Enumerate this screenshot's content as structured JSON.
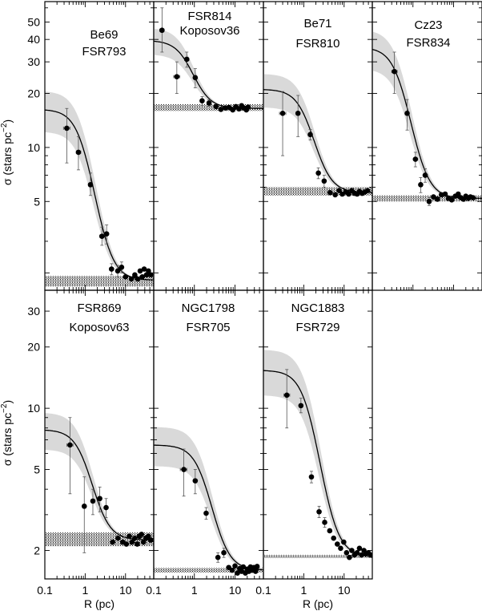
{
  "chart_data": {
    "type": "scatter",
    "x_scale": "log",
    "y_scale": "log",
    "xlim": [
      0.1,
      50
    ],
    "ylim_top_row": [
      1.6,
      65
    ],
    "ylim_bottom_row": [
      1.45,
      38
    ],
    "xlabel": "R (pc)",
    "ylabel_main": "σ (stars pc",
    "ylabel_exp": "−2",
    "ylabel_close": ")",
    "x_ticks": [
      "0.1",
      "1",
      "10"
    ],
    "y_ticks_top": [
      "5",
      "10",
      "20",
      "30",
      "40",
      "50"
    ],
    "y_ticks_bottom": [
      "2",
      "5",
      "10",
      "20",
      "30"
    ],
    "fit_color": "#000000",
    "band_color": "#d9d9d9",
    "panels": [
      {
        "row": 0,
        "col": 0,
        "labels": [
          "Be69",
          "FSR793"
        ],
        "model": {
          "bg": 1.82,
          "s0": 14.5,
          "rc": 1.0
        },
        "bg_band": [
          1.68,
          1.92
        ],
        "points": [
          {
            "x": 0.35,
            "y": 12.8,
            "xl": 0.29,
            "xh": 0.42,
            "yl": 8.2,
            "yh": 16.5
          },
          {
            "x": 0.68,
            "y": 9.4,
            "xl": 0.6,
            "xh": 0.78,
            "yl": 7.5,
            "yh": 11.5
          },
          {
            "x": 1.35,
            "y": 6.2,
            "xl": 1.2,
            "xh": 1.5,
            "yl": 5.4,
            "yh": 7.2
          },
          {
            "x": 2.6,
            "y": 3.2,
            "xl": 2.3,
            "xh": 2.9,
            "yl": 2.85,
            "yh": 3.6
          },
          {
            "x": 3.4,
            "y": 3.3,
            "xl": 3.0,
            "xh": 3.8,
            "yl": 2.9,
            "yh": 3.7
          },
          {
            "x": 4.5,
            "y": 2.1,
            "xl": 4.0,
            "xh": 5.0,
            "yl": 1.95,
            "yh": 2.25
          },
          {
            "x": 6.4,
            "y": 2.05,
            "xl": 5.8,
            "xh": 7.0,
            "yl": 1.9,
            "yh": 2.2
          },
          {
            "x": 8.0,
            "y": 2.15,
            "xl": 7.4,
            "xh": 8.7,
            "yl": 2.0,
            "yh": 2.3
          },
          {
            "x": 10,
            "y": 1.9
          },
          {
            "x": 14,
            "y": 1.85
          },
          {
            "x": 17,
            "y": 1.95
          },
          {
            "x": 20,
            "y": 1.85
          },
          {
            "x": 23,
            "y": 2.05
          },
          {
            "x": 26,
            "y": 1.9
          },
          {
            "x": 29,
            "y": 2.1
          },
          {
            "x": 33,
            "y": 1.95
          },
          {
            "x": 37,
            "y": 2.05
          },
          {
            "x": 42,
            "y": 1.95
          }
        ]
      },
      {
        "row": 0,
        "col": 1,
        "labels": [
          "FSR814",
          "Koposov36"
        ],
        "model": {
          "bg": 16.5,
          "s0": 23,
          "rc": 0.75
        },
        "bg_band": [
          16.0,
          17.4
        ],
        "points": [
          {
            "x": 0.16,
            "y": 45,
            "xl": 0.14,
            "xh": 0.18,
            "yl": 34,
            "yh": 60
          },
          {
            "x": 0.37,
            "y": 24.8,
            "xl": 0.31,
            "xh": 0.44,
            "yl": 20,
            "yh": 30
          },
          {
            "x": 0.65,
            "y": 31,
            "xl": 0.58,
            "xh": 0.73,
            "yl": 28,
            "yh": 34
          },
          {
            "x": 1.05,
            "y": 24.5,
            "xl": 0.95,
            "xh": 1.15,
            "yl": 21.5,
            "yh": 27.5
          },
          {
            "x": 1.55,
            "y": 18.2,
            "xl": 1.4,
            "xh": 1.7,
            "yl": 17.2,
            "yh": 19.2
          },
          {
            "x": 2.3,
            "y": 17.7,
            "xl": 2.1,
            "xh": 2.5,
            "yl": 17.0,
            "yh": 18.4
          },
          {
            "x": 3.4,
            "y": 16.9
          },
          {
            "x": 4.5,
            "y": 16.3
          },
          {
            "x": 5.8,
            "y": 16.6
          },
          {
            "x": 7.2,
            "y": 16.7
          },
          {
            "x": 8.8,
            "y": 16.2
          },
          {
            "x": 10.5,
            "y": 16.9
          },
          {
            "x": 12.5,
            "y": 16.4
          },
          {
            "x": 14.5,
            "y": 17.1
          },
          {
            "x": 16.5,
            "y": 16.6
          },
          {
            "x": 19,
            "y": 16.2
          },
          {
            "x": 21,
            "y": 16.8
          }
        ]
      },
      {
        "row": 0,
        "col": 2,
        "labels": [
          "Be71",
          "FSR810"
        ],
        "model": {
          "bg": 5.6,
          "s0": 15.5,
          "rc": 1.3
        },
        "bg_band": [
          5.4,
          6.0
        ],
        "points": [
          {
            "x": 0.3,
            "y": 15.5,
            "xl": 0.25,
            "xh": 0.36,
            "yl": 9.0,
            "yh": 20.5
          },
          {
            "x": 0.72,
            "y": 15.5,
            "xl": 0.64,
            "xh": 0.8,
            "yl": 11.5,
            "yh": 19.5
          },
          {
            "x": 1.45,
            "y": 11.8,
            "xl": 1.3,
            "xh": 1.6,
            "yl": 11.0,
            "yh": 12.6
          },
          {
            "x": 2.3,
            "y": 7.2,
            "xl": 2.1,
            "xh": 2.5,
            "yl": 6.7,
            "yh": 7.7
          },
          {
            "x": 3.2,
            "y": 6.5,
            "xl": 2.9,
            "xh": 3.5,
            "yl": 6.0,
            "yh": 7.0
          },
          {
            "x": 4.5,
            "y": 5.6
          },
          {
            "x": 6.0,
            "y": 5.45
          },
          {
            "x": 7.5,
            "y": 5.75
          },
          {
            "x": 9,
            "y": 5.5
          },
          {
            "x": 11,
            "y": 5.65
          },
          {
            "x": 13,
            "y": 5.5
          },
          {
            "x": 15.5,
            "y": 5.75
          },
          {
            "x": 18,
            "y": 5.55
          },
          {
            "x": 21,
            "y": 5.5
          },
          {
            "x": 24,
            "y": 5.7
          },
          {
            "x": 28,
            "y": 5.55
          },
          {
            "x": 33,
            "y": 5.65
          },
          {
            "x": 38,
            "y": 5.75
          }
        ]
      },
      {
        "row": 0,
        "col": 3,
        "labels": [
          "Cz23",
          "FSR834"
        ],
        "model": {
          "bg": 5.2,
          "s0": 31,
          "rc": 0.55
        },
        "bg_band": [
          5.0,
          5.4
        ],
        "points": [
          {
            "x": 0.35,
            "y": 26.5,
            "xl": 0.3,
            "xh": 0.41,
            "yl": 20,
            "yh": 34
          },
          {
            "x": 0.72,
            "y": 15.5,
            "xl": 0.65,
            "xh": 0.8,
            "yl": 12.5,
            "yh": 18.5
          },
          {
            "x": 1.15,
            "y": 8.6,
            "xl": 1.05,
            "xh": 1.25,
            "yl": 7.8,
            "yh": 9.4
          },
          {
            "x": 1.55,
            "y": 6.2,
            "xl": 1.42,
            "xh": 1.7,
            "yl": 5.6,
            "yh": 6.8
          },
          {
            "x": 2.0,
            "y": 7.0,
            "xl": 1.85,
            "xh": 2.15,
            "yl": 6.4,
            "yh": 7.6
          },
          {
            "x": 2.5,
            "y": 5.0,
            "xl": 2.3,
            "xh": 2.7,
            "yl": 4.75,
            "yh": 5.25
          },
          {
            "x": 3.2,
            "y": 5.3
          },
          {
            "x": 4.0,
            "y": 5.15
          },
          {
            "x": 5.0,
            "y": 5.45
          },
          {
            "x": 6.2,
            "y": 5.5
          },
          {
            "x": 7.5,
            "y": 5.2
          },
          {
            "x": 9,
            "y": 5.1
          },
          {
            "x": 11,
            "y": 5.35
          },
          {
            "x": 13,
            "y": 5.5
          },
          {
            "x": 15,
            "y": 5.25
          },
          {
            "x": 17.5,
            "y": 5.15
          },
          {
            "x": 20,
            "y": 5.35
          },
          {
            "x": 23,
            "y": 5.2
          },
          {
            "x": 26,
            "y": 5.3
          },
          {
            "x": 30,
            "y": 5.25
          }
        ]
      },
      {
        "row": 1,
        "col": 0,
        "labels": [
          "FSR869",
          "Koposov63"
        ],
        "model": {
          "bg": 2.25,
          "s0": 5.6,
          "rc": 1.1
        },
        "bg_band": [
          2.1,
          2.45
        ],
        "points": [
          {
            "x": 0.42,
            "y": 6.6,
            "xl": 0.35,
            "xh": 0.5,
            "yl": 3.8,
            "yh": 9.0
          },
          {
            "x": 0.95,
            "y": 3.3,
            "xl": 0.85,
            "xh": 1.05,
            "yl": 1.95,
            "yh": 4.6
          },
          {
            "x": 1.55,
            "y": 3.5,
            "xl": 1.4,
            "xh": 1.7,
            "yl": 3.0,
            "yh": 4.0
          },
          {
            "x": 2.3,
            "y": 3.6,
            "xl": 2.1,
            "xh": 2.5,
            "yl": 3.1,
            "yh": 4.1
          },
          {
            "x": 3.3,
            "y": 3.25,
            "xl": 3.0,
            "xh": 3.6,
            "yl": 2.9,
            "yh": 3.6
          },
          {
            "x": 4.8,
            "y": 2.2
          },
          {
            "x": 6.5,
            "y": 2.3
          },
          {
            "x": 8.5,
            "y": 2.2
          },
          {
            "x": 10.5,
            "y": 2.15
          },
          {
            "x": 12.5,
            "y": 2.35
          },
          {
            "x": 14.5,
            "y": 2.2
          },
          {
            "x": 17,
            "y": 2.3
          },
          {
            "x": 19.5,
            "y": 2.15
          },
          {
            "x": 22,
            "y": 2.35
          },
          {
            "x": 25,
            "y": 2.4
          },
          {
            "x": 28,
            "y": 2.2
          },
          {
            "x": 32,
            "y": 2.3
          },
          {
            "x": 37,
            "y": 2.35
          },
          {
            "x": 42,
            "y": 2.25
          }
        ]
      },
      {
        "row": 1,
        "col": 1,
        "labels": [
          "NGC1798",
          "FSR705"
        ],
        "model": {
          "bg": 1.6,
          "s0": 5.0,
          "rc": 1.9
        },
        "bg_band": [
          1.56,
          1.64
        ],
        "points": [
          {
            "x": 0.55,
            "y": 5.0,
            "xl": 0.45,
            "xh": 0.66,
            "yl": 3.7,
            "yh": 6.3
          },
          {
            "x": 1.05,
            "y": 4.4,
            "xl": 0.95,
            "xh": 1.15,
            "yl": 3.8,
            "yh": 5.0
          },
          {
            "x": 1.95,
            "y": 3.05,
            "xl": 1.8,
            "xh": 2.1,
            "yl": 2.85,
            "yh": 3.25
          },
          {
            "x": 3.8,
            "y": 1.85,
            "xl": 3.5,
            "xh": 4.1,
            "yl": 1.75,
            "yh": 1.95
          },
          {
            "x": 5.3,
            "y": 1.95,
            "xl": 4.9,
            "xh": 5.7,
            "yl": 1.85,
            "yh": 2.05
          },
          {
            "x": 7.0,
            "y": 1.65
          },
          {
            "x": 8.5,
            "y": 1.6
          },
          {
            "x": 10,
            "y": 1.68
          },
          {
            "x": 11.5,
            "y": 1.55
          },
          {
            "x": 13,
            "y": 1.63
          },
          {
            "x": 14.5,
            "y": 1.58
          },
          {
            "x": 16,
            "y": 1.66
          },
          {
            "x": 18,
            "y": 1.55
          },
          {
            "x": 20,
            "y": 1.62
          },
          {
            "x": 22,
            "y": 1.58
          },
          {
            "x": 24,
            "y": 1.66
          },
          {
            "x": 26.5,
            "y": 1.6
          },
          {
            "x": 29,
            "y": 1.65
          },
          {
            "x": 32,
            "y": 1.58
          },
          {
            "x": 35,
            "y": 1.67
          }
        ]
      },
      {
        "row": 1,
        "col": 2,
        "labels": [
          "NGC1883",
          "FSR729"
        ],
        "model": {
          "bg": 1.87,
          "s0": 13.5,
          "rc": 1.5
        },
        "bg_band": [
          1.84,
          1.9
        ],
        "points": [
          {
            "x": 0.38,
            "y": 11.6,
            "xl": 0.32,
            "xh": 0.45,
            "yl": 8.0,
            "yh": 15.5
          },
          {
            "x": 0.85,
            "y": 10.3,
            "xl": 0.78,
            "xh": 0.93,
            "yl": 9.5,
            "yh": 11.2
          },
          {
            "x": 1.55,
            "y": 4.6,
            "xl": 1.43,
            "xh": 1.7,
            "yl": 4.3,
            "yh": 4.9
          },
          {
            "x": 2.4,
            "y": 3.1,
            "xl": 2.2,
            "xh": 2.6,
            "yl": 2.9,
            "yh": 3.3
          },
          {
            "x": 3.3,
            "y": 2.75,
            "xl": 3.05,
            "xh": 3.55,
            "yl": 2.6,
            "yh": 2.9
          },
          {
            "x": 4.4,
            "y": 2.5
          },
          {
            "x": 5.5,
            "y": 2.3
          },
          {
            "x": 6.8,
            "y": 2.15
          },
          {
            "x": 8.2,
            "y": 2.05
          },
          {
            "x": 9.8,
            "y": 2.2
          },
          {
            "x": 11.5,
            "y": 1.95
          },
          {
            "x": 13.5,
            "y": 1.85
          },
          {
            "x": 15.5,
            "y": 2.0
          },
          {
            "x": 18,
            "y": 1.9
          },
          {
            "x": 21,
            "y": 1.95
          },
          {
            "x": 24,
            "y": 2.05
          },
          {
            "x": 27,
            "y": 1.9
          },
          {
            "x": 31,
            "y": 2.0
          },
          {
            "x": 35,
            "y": 1.92
          },
          {
            "x": 40,
            "y": 1.95
          },
          {
            "x": 45,
            "y": 1.9
          }
        ]
      }
    ]
  }
}
